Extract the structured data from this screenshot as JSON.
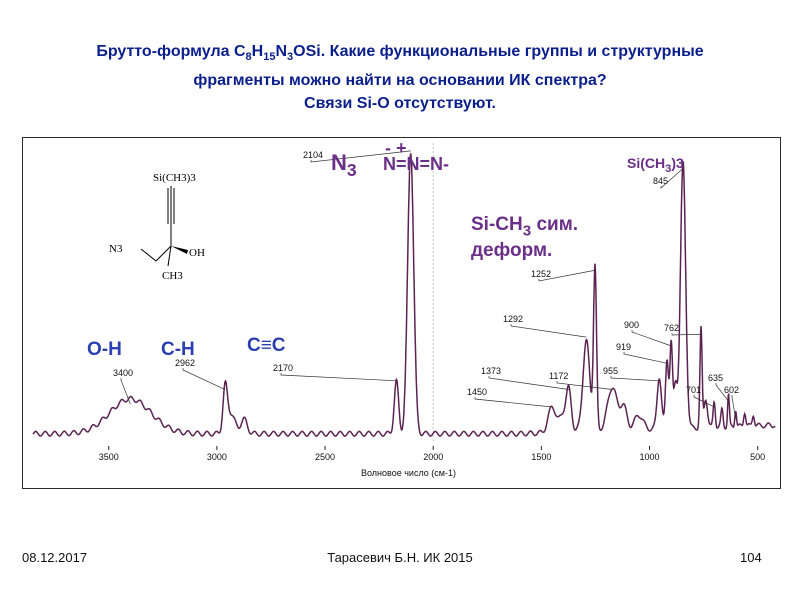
{
  "title": {
    "line1_prefix": "Брутто-формула C",
    "formula_parts": [
      {
        "t": "C",
        "s": "8"
      },
      {
        "t": "H",
        "s": "15"
      },
      {
        "t": "N",
        "s": "3"
      },
      {
        "t": "OSi",
        "s": ""
      }
    ],
    "line1_suffix": ". Какие функциональные группы и структурные",
    "line2": "фрагменты можно найти на основании ИК спектра?",
    "line3": "Связи Si-O отсутствуют."
  },
  "footer": {
    "date": "08.12.2017",
    "author": "Тарасевич Б.Н.   ИК 2015",
    "page": "104"
  },
  "colors": {
    "title": "#0b1f8c",
    "curve": "#5a2352",
    "annotation_blue": "#2b3fb0",
    "annotation_purple": "#6a2f86"
  },
  "molecule": {
    "labels": [
      "Si(CH3)3",
      "N3",
      "OH",
      "CH3"
    ]
  },
  "chart_data": {
    "type": "line",
    "x_reversed": true,
    "xlim": [
      3850,
      420
    ],
    "x_ticks": [
      3500,
      3000,
      2500,
      2000,
      1500,
      1000,
      500
    ],
    "xlabel": "Волновое число (см-1)",
    "ylabel": "",
    "grid": false,
    "reference_line_x": 2000,
    "peaks": [
      {
        "x": 3400,
        "label": "3400",
        "height": 0.12
      },
      {
        "x": 2962,
        "label": "2962",
        "height": 0.17
      },
      {
        "x": 2170,
        "label": "2170",
        "height": 0.2
      },
      {
        "x": 2104,
        "label": "2104",
        "height": 0.99
      },
      {
        "x": 1450,
        "label": "1450",
        "height": 0.11
      },
      {
        "x": 1373,
        "label": "1373",
        "height": 0.17
      },
      {
        "x": 1292,
        "label": "1292",
        "height": 0.35
      },
      {
        "x": 1252,
        "label": "1252",
        "height": 0.58
      },
      {
        "x": 1172,
        "label": "1172",
        "height": 0.17
      },
      {
        "x": 955,
        "label": "955",
        "height": 0.2
      },
      {
        "x": 919,
        "label": "919",
        "height": 0.26
      },
      {
        "x": 900,
        "label": "900",
        "height": 0.32
      },
      {
        "x": 845,
        "label": "845",
        "height": 0.93
      },
      {
        "x": 762,
        "label": "762",
        "height": 0.36
      },
      {
        "x": 701,
        "label": "701",
        "height": 0.11
      },
      {
        "x": 635,
        "label": "635",
        "height": 0.13
      },
      {
        "x": 602,
        "label": "602",
        "height": 0.07
      }
    ],
    "annotations": [
      {
        "text": "O-H",
        "style": "blue"
      },
      {
        "text": "C-H",
        "style": "blue"
      },
      {
        "text": "C≡C",
        "style": "blue"
      },
      {
        "text": "N",
        "sub": "3",
        "style": "purple"
      },
      {
        "text": "N=N=N-",
        "charges": "-  +",
        "style": "purple"
      },
      {
        "text": "Si-CH",
        "sub": "3",
        "suffix": " сим.",
        "style": "purple"
      },
      {
        "text": "деформ.",
        "style": "purple"
      },
      {
        "text": "Si(CH",
        "sub": "3",
        "suffix": ")3",
        "style": "purple"
      }
    ]
  }
}
